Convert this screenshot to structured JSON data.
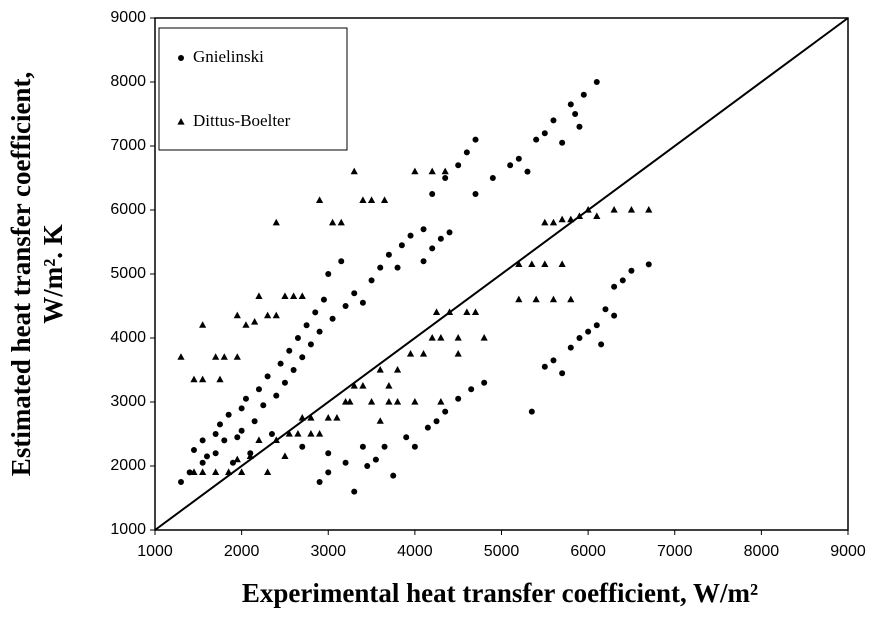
{
  "chart_data": {
    "type": "scatter",
    "xlabel": "Experimental heat transfer coefficient, W/m²",
    "ylabel": [
      "Estimated heat transfer coefficient,",
      "W/m². K"
    ],
    "xlim": [
      1000,
      9000
    ],
    "ylim": [
      1000,
      9000
    ],
    "xticks": [
      1000,
      2000,
      3000,
      4000,
      5000,
      6000,
      7000,
      8000,
      9000
    ],
    "yticks": [
      1000,
      2000,
      3000,
      4000,
      5000,
      6000,
      7000,
      8000,
      9000
    ],
    "legend": "upper left",
    "lines": [
      {
        "x": [
          1000,
          9000
        ],
        "y": [
          1000,
          9000
        ],
        "color": "#000000"
      }
    ],
    "series": [
      {
        "name": "Gnielinski",
        "marker": "circle",
        "color": "#000000",
        "x": [
          1300,
          1400,
          1450,
          1550,
          1550,
          1600,
          1700,
          1700,
          1750,
          1800,
          1850,
          1900,
          1950,
          2000,
          2000,
          2050,
          2100,
          2150,
          2200,
          2250,
          2300,
          2350,
          2400,
          2450,
          2500,
          2550,
          2600,
          2650,
          2700,
          2750,
          2800,
          2850,
          2900,
          2950,
          3000,
          3050,
          3150,
          3200,
          3300,
          3400,
          3500,
          3600,
          3700,
          3800,
          3850,
          3950,
          4100,
          4100,
          4200,
          4300,
          4400,
          4200,
          4350,
          4500,
          4600,
          4700,
          4700,
          4900,
          5100,
          5200,
          5300,
          5400,
          5500,
          5600,
          5700,
          5800,
          5850,
          5950,
          6100,
          5900,
          2900,
          3000,
          3200,
          3300,
          3450,
          3550,
          3650,
          3750,
          3900,
          4000,
          4150,
          4250,
          4350,
          4500,
          4650,
          4800,
          5350,
          5500,
          5600,
          5700,
          5800,
          5900,
          6000,
          6150,
          6100,
          6200,
          6300,
          6400,
          6500,
          6700,
          6300,
          3400,
          3000,
          2700
        ],
        "values": [
          1750,
          1900,
          2250,
          2050,
          2400,
          2150,
          2200,
          2500,
          2650,
          2400,
          2800,
          2050,
          2450,
          2550,
          2900,
          3050,
          2200,
          2700,
          3200,
          2950,
          3400,
          2500,
          3100,
          3600,
          3300,
          3800,
          3500,
          4000,
          3700,
          4200,
          3900,
          4400,
          4100,
          4600,
          5000,
          4300,
          5200,
          4500,
          4700,
          4550,
          4900,
          5100,
          5300,
          5100,
          5450,
          5600,
          5200,
          5700,
          5400,
          5550,
          5650,
          6250,
          6500,
          6700,
          6900,
          7100,
          6250,
          6500,
          6700,
          6800,
          6600,
          7100,
          7200,
          7400,
          7050,
          7650,
          7500,
          7800,
          8000,
          7300,
          1750,
          1900,
          2050,
          1600,
          2000,
          2100,
          2300,
          1850,
          2450,
          2300,
          2600,
          2700,
          2850,
          3050,
          3200,
          3300,
          2850,
          3550,
          3650,
          3450,
          3850,
          4000,
          4100,
          3900,
          4200,
          4450,
          4800,
          4900,
          5050,
          5150,
          4350,
          2300,
          2200,
          2300
        ]
      },
      {
        "name": "Dittus-Boelter",
        "marker": "triangle",
        "color": "#000000",
        "x": [
          1300,
          1450,
          1550,
          1550,
          1700,
          1750,
          1800,
          1950,
          1950,
          2050,
          2150,
          2200,
          2300,
          2400,
          2400,
          2500,
          2600,
          2700,
          2900,
          3050,
          3150,
          3300,
          3400,
          3500,
          3650,
          4000,
          4200,
          4350,
          1450,
          1550,
          1700,
          1850,
          1950,
          2000,
          2100,
          2200,
          2300,
          2400,
          2500,
          2550,
          2650,
          2700,
          2800,
          2900,
          3000,
          3100,
          3250,
          3300,
          3400,
          3500,
          3600,
          3700,
          3800,
          3800,
          3950,
          4000,
          4100,
          4200,
          4250,
          4300,
          4400,
          4500,
          4600,
          4700,
          4800,
          4300,
          4500,
          5200,
          5350,
          5500,
          5700,
          5200,
          5400,
          5600,
          5800,
          5500,
          5600,
          5700,
          5800,
          5900,
          6000,
          6100,
          6300,
          6500,
          6700,
          3200,
          3600,
          3700,
          2800
        ],
        "values": [
          3700,
          3350,
          3350,
          4200,
          3700,
          3350,
          3700,
          4350,
          3700,
          4200,
          4250,
          4650,
          4350,
          5800,
          4350,
          4650,
          4650,
          4650,
          6150,
          5800,
          5800,
          6600,
          6150,
          6150,
          6150,
          6600,
          6600,
          6600,
          1900,
          1900,
          1900,
          1900,
          2100,
          1900,
          2150,
          2400,
          1900,
          2400,
          2150,
          2500,
          2500,
          2750,
          2500,
          2500,
          2750,
          2750,
          3000,
          3250,
          3250,
          3000,
          3500,
          3250,
          3500,
          3000,
          3750,
          3000,
          3750,
          4000,
          4400,
          4000,
          4400,
          4000,
          4400,
          4400,
          4000,
          3000,
          3750,
          5150,
          5150,
          5150,
          5150,
          4600,
          4600,
          4600,
          4600,
          5800,
          5800,
          5850,
          5850,
          5900,
          6000,
          5900,
          6000,
          6000,
          6000,
          3000,
          2700,
          3000,
          2750
        ]
      }
    ]
  }
}
